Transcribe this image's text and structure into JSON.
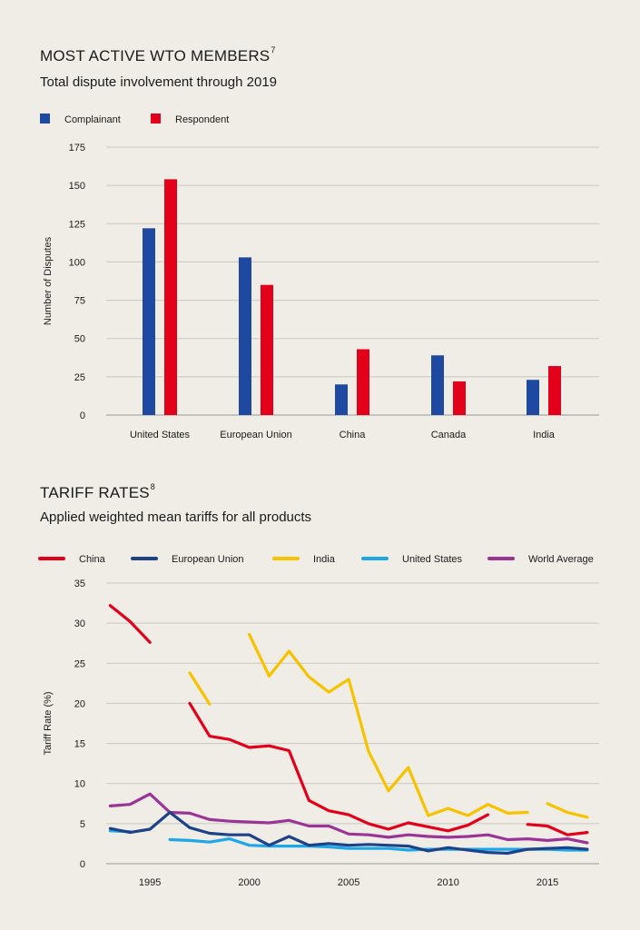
{
  "chart_data": [
    {
      "type": "bar",
      "title": "MOST ACTIVE WTO MEMBERS",
      "title_note": "7",
      "subtitle": "Total dispute involvement through 2019",
      "ylabel": "Number of Disputes",
      "xlabel": "",
      "ylim": [
        0,
        175
      ],
      "yticks": [
        0,
        25,
        50,
        75,
        100,
        125,
        150,
        175
      ],
      "grid": true,
      "legend_position": "top-left",
      "categories": [
        "United States",
        "European Union",
        "China",
        "Canada",
        "India"
      ],
      "series": [
        {
          "name": "Complainant",
          "color": "#1f49a0",
          "values": [
            122,
            103,
            20,
            39,
            23
          ]
        },
        {
          "name": "Respondent",
          "color": "#e3001b",
          "values": [
            154,
            85,
            43,
            22,
            32
          ]
        }
      ]
    },
    {
      "type": "line",
      "title": "TARIFF RATES",
      "title_note": "8",
      "subtitle": "Applied weighted mean tariffs for all products",
      "ylabel": "Tariff Rate (%)",
      "xlabel": "",
      "ylim": [
        0,
        35
      ],
      "yticks": [
        0,
        5,
        10,
        15,
        20,
        25,
        30,
        35
      ],
      "xlim": [
        1992.8,
        2017.6
      ],
      "xticks": [
        1995,
        2000,
        2005,
        2010,
        2015
      ],
      "grid": true,
      "legend_position": "top",
      "series": [
        {
          "name": "China",
          "color": "#e3001b",
          "segments": [
            [
              [
                1993,
                32.2
              ],
              [
                1994,
                30.2
              ],
              [
                1995,
                27.6
              ]
            ],
            [
              [
                1997,
                20.0
              ],
              [
                1998,
                15.9
              ],
              [
                1999,
                15.5
              ],
              [
                2000,
                14.5
              ],
              [
                2001,
                14.7
              ],
              [
                2002,
                14.1
              ],
              [
                2003,
                7.9
              ],
              [
                2004,
                6.6
              ],
              [
                2005,
                6.1
              ],
              [
                2006,
                5.0
              ],
              [
                2007,
                4.3
              ],
              [
                2008,
                5.1
              ],
              [
                2009,
                4.6
              ],
              [
                2010,
                4.1
              ],
              [
                2011,
                4.8
              ],
              [
                2012,
                6.1
              ]
            ],
            [
              [
                2014,
                4.9
              ],
              [
                2015,
                4.7
              ],
              [
                2016,
                3.6
              ],
              [
                2017,
                3.9
              ]
            ]
          ]
        },
        {
          "name": "European Union",
          "color": "#1e4287",
          "segments": [
            [
              [
                1993,
                4.4
              ],
              [
                1994,
                3.9
              ],
              [
                1995,
                4.3
              ],
              [
                1996,
                6.4
              ],
              [
                1997,
                4.5
              ],
              [
                1998,
                3.8
              ],
              [
                1999,
                3.6
              ],
              [
                2000,
                3.6
              ],
              [
                2001,
                2.3
              ],
              [
                2002,
                3.4
              ],
              [
                2003,
                2.3
              ],
              [
                2004,
                2.5
              ],
              [
                2005,
                2.3
              ],
              [
                2006,
                2.4
              ],
              [
                2007,
                2.3
              ],
              [
                2008,
                2.2
              ],
              [
                2009,
                1.6
              ],
              [
                2010,
                2.0
              ],
              [
                2011,
                1.7
              ],
              [
                2012,
                1.4
              ],
              [
                2013,
                1.3
              ],
              [
                2014,
                1.8
              ],
              [
                2015,
                1.9
              ],
              [
                2016,
                2.0
              ],
              [
                2017,
                1.8
              ]
            ]
          ]
        },
        {
          "name": "India",
          "color": "#f7c200",
          "segments": [
            [
              [
                1997,
                23.8
              ],
              [
                1998,
                19.9
              ]
            ],
            [
              [
                2000,
                28.6
              ],
              [
                2001,
                23.4
              ],
              [
                2002,
                26.5
              ],
              [
                2003,
                23.3
              ],
              [
                2004,
                21.4
              ],
              [
                2005,
                23.0
              ],
              [
                2006,
                14.0
              ],
              [
                2007,
                9.1
              ],
              [
                2008,
                12.0
              ],
              [
                2009,
                6.0
              ],
              [
                2010,
                6.9
              ],
              [
                2011,
                6.0
              ],
              [
                2012,
                7.4
              ],
              [
                2013,
                6.3
              ],
              [
                2014,
                6.4
              ]
            ],
            [
              [
                2015,
                7.5
              ],
              [
                2016,
                6.4
              ],
              [
                2017,
                5.8
              ]
            ]
          ]
        },
        {
          "name": "United States",
          "color": "#1ba7e8",
          "segments": [
            [
              [
                1993,
                4.1
              ],
              [
                1994,
                4.0
              ]
            ],
            [
              [
                1996,
                3.0
              ],
              [
                1997,
                2.9
              ],
              [
                1998,
                2.7
              ],
              [
                1999,
                3.1
              ],
              [
                2000,
                2.3
              ],
              [
                2001,
                2.2
              ],
              [
                2002,
                2.2
              ],
              [
                2003,
                2.2
              ],
              [
                2004,
                2.1
              ],
              [
                2005,
                1.9
              ],
              [
                2006,
                1.9
              ],
              [
                2007,
                1.9
              ],
              [
                2008,
                1.7
              ],
              [
                2009,
                1.8
              ],
              [
                2010,
                1.8
              ],
              [
                2011,
                1.8
              ],
              [
                2012,
                1.8
              ],
              [
                2013,
                1.8
              ],
              [
                2014,
                1.8
              ],
              [
                2015,
                1.8
              ],
              [
                2016,
                1.7
              ],
              [
                2017,
                1.7
              ]
            ]
          ]
        },
        {
          "name": "World Average",
          "color": "#9a3597",
          "segments": [
            [
              [
                1993,
                7.2
              ],
              [
                1994,
                7.4
              ],
              [
                1995,
                8.7
              ],
              [
                1996,
                6.4
              ],
              [
                1997,
                6.3
              ],
              [
                1998,
                5.5
              ],
              [
                1999,
                5.3
              ],
              [
                2000,
                5.2
              ],
              [
                2001,
                5.1
              ],
              [
                2002,
                5.4
              ],
              [
                2003,
                4.7
              ],
              [
                2004,
                4.7
              ],
              [
                2005,
                3.7
              ],
              [
                2006,
                3.6
              ],
              [
                2007,
                3.3
              ],
              [
                2008,
                3.6
              ],
              [
                2009,
                3.4
              ],
              [
                2010,
                3.3
              ],
              [
                2011,
                3.4
              ],
              [
                2012,
                3.6
              ],
              [
                2013,
                3.0
              ],
              [
                2014,
                3.1
              ],
              [
                2015,
                2.9
              ],
              [
                2016,
                3.1
              ],
              [
                2017,
                2.6
              ]
            ]
          ]
        }
      ]
    }
  ]
}
